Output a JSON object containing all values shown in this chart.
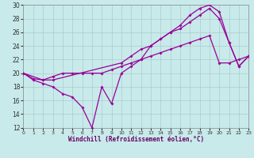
{
  "xlabel": "Windchill (Refroidissement éolien,°C)",
  "bg_color": "#c8eaea",
  "grid_color": "#aacccc",
  "line_color": "#990099",
  "xlim": [
    0,
    23
  ],
  "ylim": [
    12,
    30
  ],
  "xticks": [
    0,
    1,
    2,
    3,
    4,
    5,
    6,
    7,
    8,
    9,
    10,
    11,
    12,
    13,
    14,
    15,
    16,
    17,
    18,
    19,
    20,
    21,
    22,
    23
  ],
  "yticks": [
    12,
    14,
    16,
    18,
    20,
    22,
    24,
    26,
    28,
    30
  ],
  "line1_x": [
    0,
    1,
    2,
    3,
    4,
    5,
    6,
    7,
    8,
    9,
    10,
    11,
    12,
    13,
    14,
    15,
    16,
    17,
    18,
    19,
    20,
    21,
    22,
    23
  ],
  "line1_y": [
    20,
    19.2,
    19,
    19.5,
    20,
    20,
    20,
    20,
    20,
    20.5,
    21,
    21.5,
    22,
    22.5,
    23,
    23.5,
    24,
    24.5,
    25,
    25.5,
    21.5,
    21.5,
    22,
    22.5
  ],
  "line2_x": [
    0,
    1,
    2,
    3,
    4,
    5,
    6,
    7,
    8,
    9,
    10,
    11,
    12,
    13,
    14,
    15,
    16,
    17,
    18,
    19,
    20,
    21,
    22,
    23
  ],
  "line2_y": [
    20,
    19,
    18.5,
    18,
    17,
    16.5,
    15,
    12,
    18,
    15.5,
    20,
    21,
    22,
    24,
    25,
    26,
    27,
    28.5,
    29.5,
    30,
    29,
    24.5,
    21,
    22.5
  ],
  "line3_x": [
    0,
    2,
    3,
    10,
    11,
    12,
    13,
    14,
    15,
    16,
    17,
    18,
    19,
    20,
    21,
    22,
    23
  ],
  "line3_y": [
    20,
    19,
    19,
    21.5,
    22.5,
    23.5,
    24,
    25,
    26,
    26.5,
    27.5,
    28.5,
    29.5,
    28,
    24.5,
    21,
    22.5
  ]
}
